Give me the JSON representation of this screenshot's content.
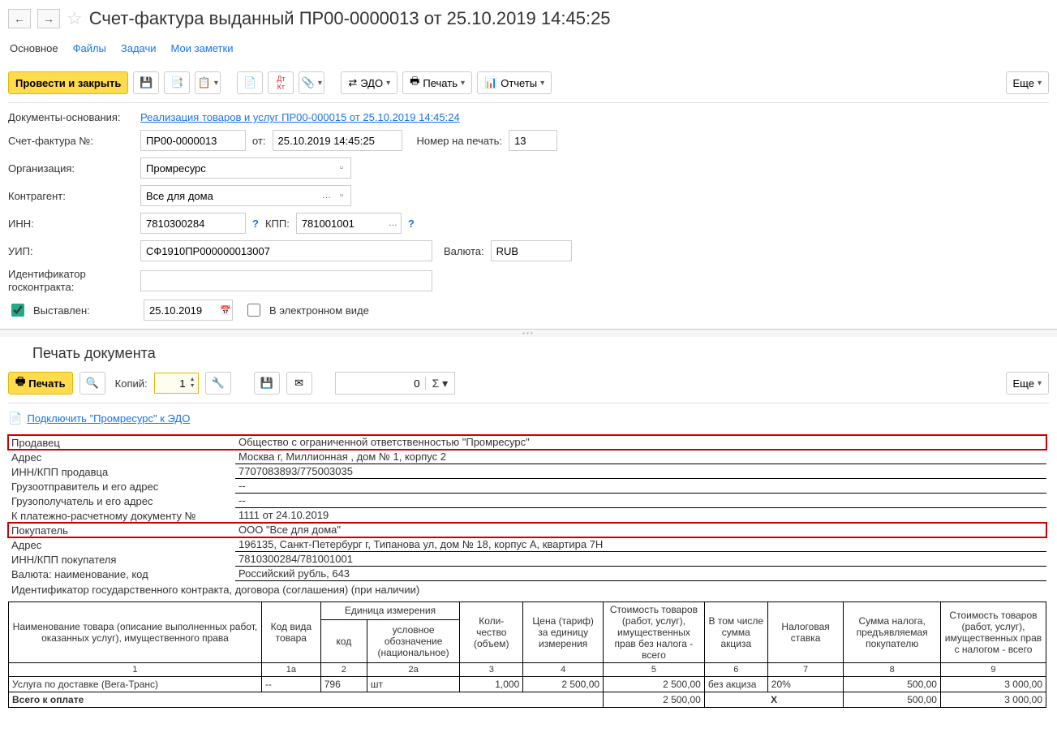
{
  "header": {
    "title": "Счет-фактура выданный ПР00-0000013 от 25.10.2019 14:45:25"
  },
  "tabs": {
    "main": "Основное",
    "files": "Файлы",
    "tasks": "Задачи",
    "notes": "Мои заметки"
  },
  "toolbar": {
    "post_and_close": "Провести и закрыть",
    "edo": "ЭДО",
    "print": "Печать",
    "reports": "Отчеты",
    "more": "Еще"
  },
  "form": {
    "basis_label": "Документы-основания:",
    "basis_link": "Реализация товаров и услуг ПР00-000015 от 25.10.2019 14:45:24",
    "number_label": "Счет-фактура №:",
    "number_value": "ПР00-0000013",
    "from_label": "от:",
    "date_value": "25.10.2019 14:45:25",
    "print_number_label": "Номер на печать:",
    "print_number_value": "13",
    "org_label": "Организация:",
    "org_value": "Промресурс",
    "counterparty_label": "Контрагент:",
    "counterparty_value": "Все для дома",
    "inn_label": "ИНН:",
    "inn_value": "7810300284",
    "kpp_label": "КПП:",
    "kpp_value": "781001001",
    "uip_label": "УИП:",
    "uip_value": "СФ1910ПР000000013007",
    "currency_label": "Валюта:",
    "currency_value": "RUB",
    "contract_id_label": "Идентификатор госконтракта:",
    "contract_id_value": "",
    "issued_label": "Выставлен:",
    "issued_date": "25.10.2019",
    "electronic_label": "В электронном виде"
  },
  "print_section": {
    "title": "Печать документа",
    "print_btn": "Печать",
    "copies_label": "Копий:",
    "copies_value": "1",
    "sum_value": "0",
    "more": "Еще",
    "connect_link": "Подключить \"Промресурс\" к ЭДО"
  },
  "info": {
    "rows": [
      {
        "label": "Продавец",
        "value": "Общество с ограниченной ответственностью \"Промресурс\"",
        "highlight": true
      },
      {
        "label": "Адрес",
        "value": "Москва г, Миллионная , дом № 1, корпус 2"
      },
      {
        "label": "ИНН/КПП продавца",
        "value": "7707083893/775003035"
      },
      {
        "label": "Грузоотправитель и его адрес",
        "value": "--"
      },
      {
        "label": "Грузополучатель и его адрес",
        "value": "--"
      },
      {
        "label": "К платежно-расчетному документу №",
        "value": "1111 от 24.10.2019"
      },
      {
        "label": "Покупатель",
        "value": "ООО \"Все для дома\"",
        "highlight": true
      },
      {
        "label": "Адрес",
        "value": "196135, Санкт-Петербург г, Типанова ул, дом № 18, корпус А, квартира 7Н"
      },
      {
        "label": "ИНН/КПП покупателя",
        "value": "7810300284/781001001"
      },
      {
        "label": "Валюта: наименование, код",
        "value": "Российский рубль, 643"
      }
    ],
    "contract_id_line": "Идентификатор государственного контракта, договора (соглашения) (при наличии)"
  },
  "table": {
    "headers": {
      "name": "Наименование товара (описание выполненных работ, оказанных услуг), имущественного права",
      "type_code": "Код вида товара",
      "unit": "Единица измерения",
      "unit_code": "код",
      "unit_symbol": "условное обозначение (национальное)",
      "qty": "Коли-\nчество (объем)",
      "price": "Цена (тариф) за единицу измерения",
      "cost_no_tax": "Стоимость товаров (работ, услуг), имущественных прав без налога - всего",
      "excise": "В том числе сумма акциза",
      "tax_rate": "Налоговая ставка",
      "tax_sum": "Сумма налога, предъявляемая покупателю",
      "cost_with_tax": "Стоимость товаров (работ, услуг), имущественных прав с налогом - всего"
    },
    "colnums": [
      "1",
      "1а",
      "2",
      "2а",
      "3",
      "4",
      "5",
      "6",
      "7",
      "8",
      "9"
    ],
    "rows": [
      {
        "name": "Услуга по доставке (Вега-Транс)",
        "type_code": "--",
        "unit_code": "796",
        "unit_symbol": "шт",
        "qty": "1,000",
        "price": "2 500,00",
        "cost_no_tax": "2 500,00",
        "excise": "без акциза",
        "tax_rate": "20%",
        "tax_sum": "500,00",
        "cost_with_tax": "3 000,00"
      }
    ],
    "total_label": "Всего к оплате",
    "total": {
      "cost_no_tax": "2 500,00",
      "excise_x": "Х",
      "tax_sum": "500,00",
      "cost_with_tax": "3 000,00"
    }
  }
}
